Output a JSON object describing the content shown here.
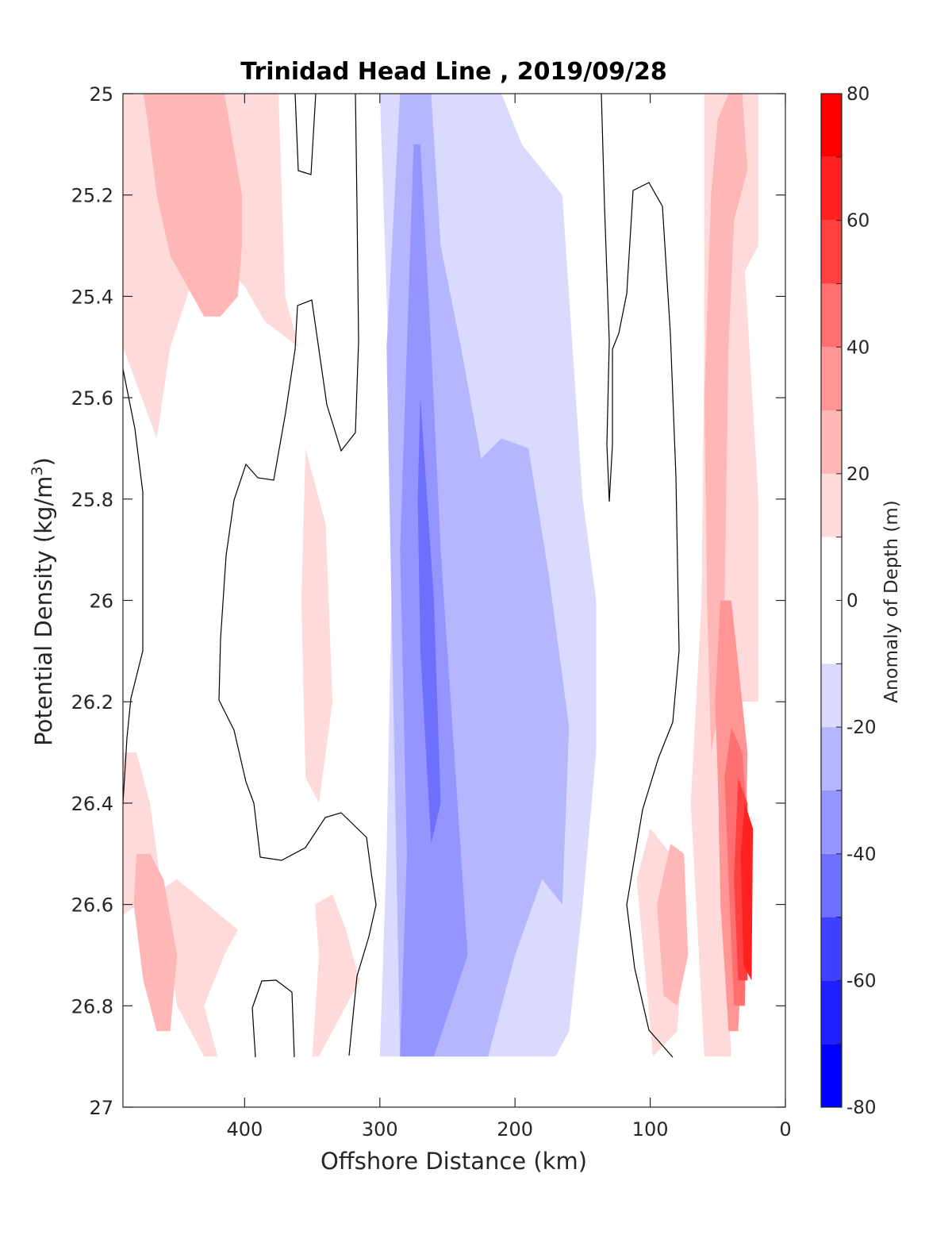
{
  "chart_data": {
    "type": "contour",
    "title": "Trinidad Head Line , 2019/09/28",
    "xlabel": "Offshore Distance (km)",
    "ylabel_main": "Potential Density (kg/m",
    "ylabel_sup": "3",
    "ylabel_close": ")",
    "colorbar_label": "Anomaly of Depth (m)",
    "xlim": [
      490,
      0
    ],
    "ylim": [
      25,
      27
    ],
    "y_reversed": true,
    "x_reversed": true,
    "grid": false,
    "xticks": [
      400,
      300,
      200,
      100,
      0
    ],
    "xtick_labels": [
      "400",
      "300",
      "200",
      "100",
      "0"
    ],
    "yticks": [
      25,
      25.2,
      25.4,
      25.6,
      25.8,
      26,
      26.2,
      26.4,
      26.6,
      26.8,
      27
    ],
    "ytick_labels": [
      "25",
      "25.2",
      "25.4",
      "25.6",
      "25.8",
      "26",
      "26.2",
      "26.4",
      "26.6",
      "26.8",
      "27"
    ],
    "colorbar_ticks": [
      80,
      60,
      40,
      20,
      0,
      -20,
      -40,
      -60,
      -80
    ],
    "colorbar_tick_labels": [
      "80",
      "60",
      "40",
      "20",
      "0",
      "-20",
      "-40",
      "-60",
      "-80"
    ],
    "clim": [
      -80,
      80
    ],
    "level_step": 10,
    "level_colors": [
      {
        "range": [
          -80,
          -70
        ],
        "color": "#0000ff"
      },
      {
        "range": [
          -70,
          -60
        ],
        "color": "#2020ff"
      },
      {
        "range": [
          -60,
          -50
        ],
        "color": "#4040ff"
      },
      {
        "range": [
          -50,
          -40
        ],
        "color": "#6f6fff"
      },
      {
        "range": [
          -40,
          -30
        ],
        "color": "#9595ff"
      },
      {
        "range": [
          -30,
          -20
        ],
        "color": "#b6b6ff"
      },
      {
        "range": [
          -20,
          -10
        ],
        "color": "#dadaff"
      },
      {
        "range": [
          -10,
          10
        ],
        "color": "#ffffff"
      },
      {
        "range": [
          10,
          20
        ],
        "color": "#ffdada"
      },
      {
        "range": [
          20,
          30
        ],
        "color": "#ffb6b6"
      },
      {
        "range": [
          30,
          40
        ],
        "color": "#ff9595"
      },
      {
        "range": [
          40,
          50
        ],
        "color": "#ff6f6f"
      },
      {
        "range": [
          50,
          60
        ],
        "color": "#ff4040"
      },
      {
        "range": [
          60,
          70
        ],
        "color": "#ff2020"
      },
      {
        "range": [
          70,
          80
        ],
        "color": "#ff0000"
      }
    ],
    "data_extent": {
      "x": [
        490,
        20
      ],
      "y": [
        25,
        26.9
      ]
    },
    "zero_contour_color": "#000000",
    "regions": [
      {
        "level": 15,
        "points": [
          [
            490,
            25
          ],
          [
            375,
            25
          ],
          [
            370,
            25.4
          ],
          [
            360,
            25.5
          ],
          [
            385,
            25.45
          ],
          [
            400,
            25.38
          ],
          [
            430,
            25.3
          ],
          [
            455,
            25.5
          ],
          [
            465,
            25.68
          ],
          [
            490,
            25.5
          ]
        ]
      },
      {
        "level": 25,
        "points": [
          [
            475,
            25
          ],
          [
            415,
            25
          ],
          [
            402,
            25.2
          ],
          [
            402,
            25.3
          ],
          [
            405,
            25.4
          ],
          [
            418,
            25.44
          ],
          [
            430,
            25.44
          ],
          [
            455,
            25.32
          ],
          [
            465,
            25.2
          ],
          [
            472,
            25.05
          ]
        ]
      },
      {
        "level": 15,
        "points": [
          [
            490,
            26.3
          ],
          [
            480,
            26.3
          ],
          [
            470,
            26.4
          ],
          [
            460,
            26.6
          ],
          [
            450,
            26.8
          ],
          [
            430,
            26.9
          ],
          [
            420,
            26.9
          ],
          [
            430,
            26.8
          ],
          [
            415,
            26.7
          ],
          [
            405,
            26.65
          ],
          [
            450,
            26.55
          ],
          [
            490,
            26.62
          ]
        ]
      },
      {
        "level": 25,
        "points": [
          [
            480,
            26.5
          ],
          [
            470,
            26.5
          ],
          [
            460,
            26.55
          ],
          [
            450,
            26.7
          ],
          [
            455,
            26.85
          ],
          [
            465,
            26.85
          ],
          [
            475,
            26.75
          ],
          [
            482,
            26.6
          ]
        ]
      },
      {
        "level": 15,
        "points": [
          [
            375,
            26.9
          ],
          [
            350,
            26.9
          ],
          [
            345,
            26.7
          ],
          [
            348,
            26.6
          ],
          [
            335,
            26.58
          ],
          [
            325,
            26.65
          ],
          [
            315,
            26.75
          ],
          [
            345,
            26.9
          ]
        ]
      },
      {
        "level": 15,
        "points": [
          [
            85,
            26.5
          ],
          [
            75,
            26.65
          ],
          [
            80,
            26.85
          ],
          [
            98,
            26.9
          ],
          [
            110,
            26.55
          ],
          [
            100,
            26.45
          ]
        ]
      },
      {
        "level": 25,
        "points": [
          [
            85,
            26.48
          ],
          [
            75,
            26.5
          ],
          [
            72,
            26.7
          ],
          [
            80,
            26.8
          ],
          [
            90,
            26.78
          ],
          [
            95,
            26.6
          ]
        ]
      },
      {
        "level": 15,
        "points": [
          [
            60,
            25
          ],
          [
            20,
            25
          ],
          [
            20,
            25.3
          ],
          [
            30,
            25.35
          ],
          [
            20,
            25.8
          ],
          [
            20,
            26.2
          ],
          [
            40,
            26.2
          ],
          [
            50,
            26.4
          ],
          [
            40,
            26.9
          ],
          [
            60,
            26.9
          ],
          [
            70,
            26.4
          ],
          [
            62,
            26.0
          ],
          [
            60,
            25.5
          ]
        ]
      },
      {
        "level": 25,
        "points": [
          [
            42,
            25
          ],
          [
            32,
            25
          ],
          [
            28,
            25.15
          ],
          [
            38,
            25.25
          ],
          [
            42,
            25.5
          ],
          [
            45,
            26.0
          ],
          [
            48,
            26.2
          ],
          [
            55,
            26.3
          ],
          [
            58,
            26.0
          ],
          [
            60,
            25.6
          ],
          [
            55,
            25.2
          ],
          [
            50,
            25.05
          ]
        ]
      },
      {
        "level": 35,
        "points": [
          [
            48,
            26.0
          ],
          [
            40,
            26.0
          ],
          [
            32,
            26.2
          ],
          [
            28,
            26.3
          ],
          [
            30,
            26.6
          ],
          [
            35,
            26.85
          ],
          [
            42,
            26.85
          ],
          [
            48,
            26.6
          ],
          [
            50,
            26.35
          ],
          [
            52,
            26.2
          ]
        ]
      },
      {
        "level": 45,
        "points": [
          [
            40,
            26.25
          ],
          [
            32,
            26.3
          ],
          [
            28,
            26.45
          ],
          [
            30,
            26.8
          ],
          [
            38,
            26.8
          ],
          [
            42,
            26.55
          ],
          [
            45,
            26.35
          ]
        ]
      },
      {
        "level": 55,
        "points": [
          [
            35,
            26.35
          ],
          [
            28,
            26.4
          ],
          [
            28,
            26.75
          ],
          [
            35,
            26.75
          ],
          [
            38,
            26.55
          ]
        ]
      },
      {
        "level": 65,
        "points": [
          [
            30,
            26.4
          ],
          [
            24,
            26.45
          ],
          [
            25,
            26.75
          ],
          [
            31,
            26.72
          ],
          [
            33,
            26.5
          ]
        ]
      },
      {
        "level": -15,
        "points": [
          [
            300,
            25
          ],
          [
            210,
            25
          ],
          [
            195,
            25.1
          ],
          [
            180,
            25.15
          ],
          [
            165,
            25.2
          ],
          [
            160,
            25.4
          ],
          [
            150,
            25.8
          ],
          [
            140,
            26.0
          ],
          [
            140,
            26.3
          ],
          [
            150,
            26.6
          ],
          [
            160,
            26.85
          ],
          [
            170,
            26.9
          ],
          [
            300,
            26.9
          ],
          [
            295,
            26.5
          ],
          [
            290,
            25.8
          ],
          [
            295,
            25.4
          ]
        ]
      },
      {
        "level": -25,
        "points": [
          [
            285,
            25
          ],
          [
            262,
            25
          ],
          [
            255,
            25.3
          ],
          [
            240,
            25.5
          ],
          [
            225,
            25.72
          ],
          [
            210,
            25.68
          ],
          [
            190,
            25.7
          ],
          [
            175,
            25.95
          ],
          [
            160,
            26.25
          ],
          [
            165,
            26.6
          ],
          [
            180,
            26.55
          ],
          [
            200,
            26.7
          ],
          [
            220,
            26.9
          ],
          [
            285,
            26.9
          ],
          [
            290,
            26.2
          ],
          [
            295,
            25.5
          ]
        ]
      },
      {
        "level": -35,
        "points": [
          [
            275,
            25.1
          ],
          [
            270,
            25.1
          ],
          [
            262,
            25.5
          ],
          [
            255,
            25.9
          ],
          [
            245,
            26.3
          ],
          [
            235,
            26.7
          ],
          [
            260,
            26.9
          ],
          [
            285,
            26.9
          ],
          [
            280,
            26.5
          ],
          [
            285,
            25.9
          ]
        ]
      },
      {
        "level": -45,
        "points": [
          [
            270,
            25.6
          ],
          [
            260,
            26.0
          ],
          [
            255,
            26.4
          ],
          [
            262,
            26.48
          ],
          [
            270,
            26.1
          ],
          [
            272,
            25.8
          ]
        ]
      },
      {
        "level": 15,
        "points": [
          [
            355,
            25.7
          ],
          [
            340,
            25.85
          ],
          [
            335,
            26.2
          ],
          [
            345,
            26.4
          ],
          [
            355,
            26.35
          ],
          [
            358,
            26.0
          ]
        ]
      }
    ]
  }
}
